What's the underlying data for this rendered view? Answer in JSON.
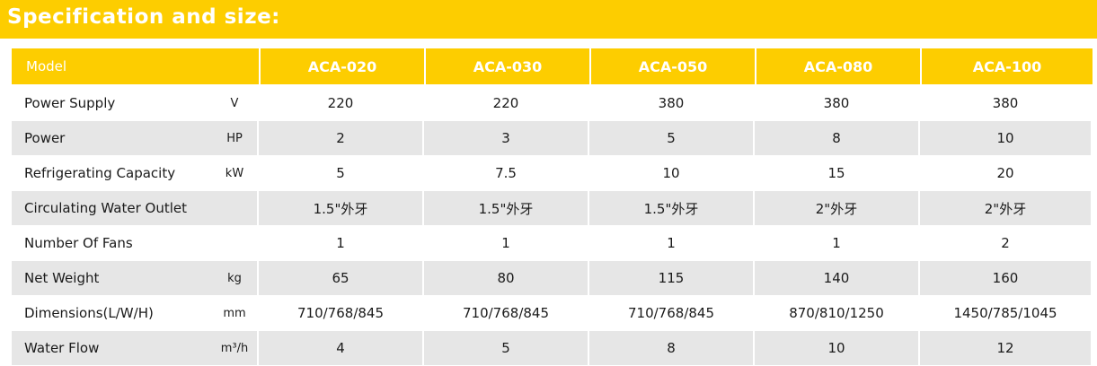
{
  "banner": {
    "title": "Specification and size:"
  },
  "colors": {
    "accent": "#fdcd00",
    "row_shade": "#e6e6e6"
  },
  "table": {
    "model_label": "Model",
    "models": [
      "ACA-020",
      "ACA-030",
      "ACA-050",
      "ACA-080",
      "ACA-100"
    ],
    "rows": [
      {
        "label": "Power Supply",
        "unit": "V",
        "values": [
          "220",
          "220",
          "380",
          "380",
          "380"
        ]
      },
      {
        "label": "Power",
        "unit": "HP",
        "values": [
          "2",
          "3",
          "5",
          "8",
          "10"
        ]
      },
      {
        "label": "Refrigerating Capacity",
        "unit": "kW",
        "values": [
          "5",
          "7.5",
          "10",
          "15",
          "20"
        ]
      },
      {
        "label": "Circulating Water Outlet",
        "unit": "",
        "values": [
          "1.5\"外牙",
          "1.5\"外牙",
          "1.5\"外牙",
          "2\"外牙",
          "2\"外牙"
        ]
      },
      {
        "label": "Number Of Fans",
        "unit": "",
        "values": [
          "1",
          "1",
          "1",
          "1",
          "2"
        ]
      },
      {
        "label": "Net Weight",
        "unit": "kg",
        "values": [
          "65",
          "80",
          "115",
          "140",
          "160"
        ]
      },
      {
        "label": "Dimensions(L/W/H)",
        "unit": "mm",
        "values": [
          "710/768/845",
          "710/768/845",
          "710/768/845",
          "870/810/1250",
          "1450/785/1045"
        ]
      },
      {
        "label": "Water Flow",
        "unit": "m³/h",
        "values": [
          "4",
          "5",
          "8",
          "10",
          "12"
        ]
      }
    ]
  }
}
